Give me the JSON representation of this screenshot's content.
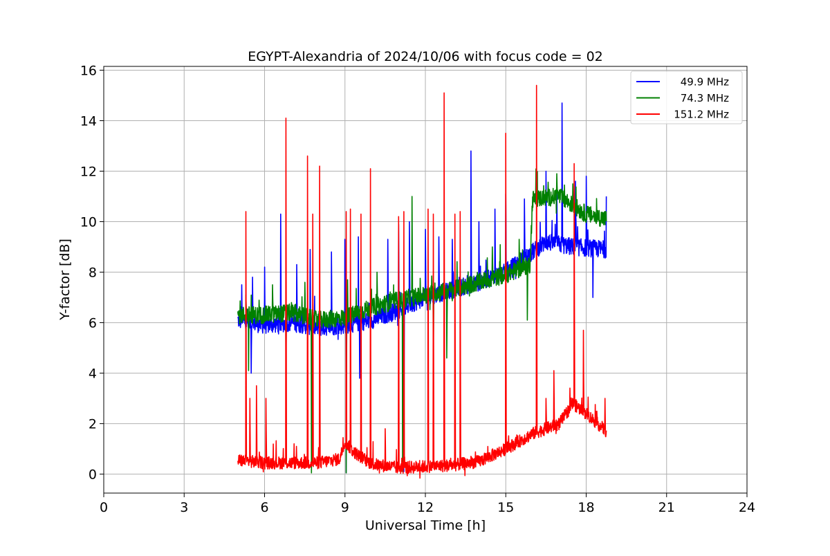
{
  "chart_data": {
    "type": "line",
    "title": "EGYPT-Alexandria of 2024/10/06 with focus code = 02",
    "xlabel": "Universal Time [h]",
    "ylabel": "Y-factor [dB]",
    "xlim": [
      0,
      24
    ],
    "ylim": [
      -0.75,
      16.15
    ],
    "xticks": [
      0,
      3,
      6,
      9,
      12,
      15,
      18,
      21,
      24
    ],
    "yticks": [
      0,
      2,
      4,
      6,
      8,
      10,
      12,
      14,
      16
    ],
    "grid": true,
    "legend_position": "top-right",
    "x_range_data": [
      5.0,
      18.75
    ],
    "series": [
      {
        "name": "49.9 MHz",
        "color": "#0000ff",
        "baseline": [
          [
            5.0,
            6.1
          ],
          [
            6.0,
            5.9
          ],
          [
            7.0,
            6.0
          ],
          [
            8.0,
            5.8
          ],
          [
            9.0,
            5.9
          ],
          [
            10.0,
            6.1
          ],
          [
            11.0,
            6.5
          ],
          [
            12.0,
            7.0
          ],
          [
            13.0,
            7.3
          ],
          [
            14.0,
            7.6
          ],
          [
            15.0,
            8.0
          ],
          [
            16.0,
            8.8
          ],
          [
            16.5,
            9.2
          ],
          [
            17.5,
            9.0
          ],
          [
            18.75,
            8.9
          ]
        ],
        "noise": 0.35,
        "spikes": [
          [
            5.15,
            7.5
          ],
          [
            5.55,
            7.8
          ],
          [
            6.0,
            8.2
          ],
          [
            6.6,
            10.3
          ],
          [
            7.2,
            8.3
          ],
          [
            7.7,
            8.9
          ],
          [
            8.5,
            8.8
          ],
          [
            9.0,
            9.3
          ],
          [
            9.5,
            9.4
          ],
          [
            10.6,
            9.3
          ],
          [
            11.0,
            9.9
          ],
          [
            11.4,
            10.0
          ],
          [
            12.0,
            9.7
          ],
          [
            12.5,
            9.4
          ],
          [
            13.0,
            9.3
          ],
          [
            13.7,
            12.8
          ],
          [
            14.0,
            10.0
          ],
          [
            14.6,
            10.5
          ],
          [
            15.0,
            11.1
          ],
          [
            15.7,
            10.9
          ],
          [
            16.5,
            12.0
          ],
          [
            16.9,
            11.3
          ],
          [
            17.1,
            14.7
          ],
          [
            17.6,
            11.6
          ],
          [
            18.0,
            11.8
          ],
          [
            18.75,
            11.0
          ],
          [
            18.25,
            7.0
          ]
        ],
        "dips": [
          [
            5.5,
            4.0
          ],
          [
            9.05,
            0.05
          ],
          [
            9.55,
            3.8
          ],
          [
            11.2,
            0.1
          ]
        ]
      },
      {
        "name": "74.3 MHz",
        "color": "#008000",
        "baseline": [
          [
            5.0,
            6.3
          ],
          [
            6.0,
            6.3
          ],
          [
            7.0,
            6.4
          ],
          [
            8.0,
            6.1
          ],
          [
            9.0,
            6.2
          ],
          [
            10.0,
            6.6
          ],
          [
            11.0,
            6.9
          ],
          [
            12.0,
            7.1
          ],
          [
            13.0,
            7.3
          ],
          [
            14.0,
            7.6
          ],
          [
            15.0,
            7.9
          ],
          [
            15.9,
            8.3
          ],
          [
            16.0,
            10.9
          ],
          [
            17.0,
            11.0
          ],
          [
            18.0,
            10.3
          ],
          [
            18.75,
            10.1
          ]
        ],
        "noise": 0.35,
        "spikes": [
          [
            5.3,
            7.1
          ],
          [
            6.3,
            7.5
          ],
          [
            7.5,
            7.6
          ],
          [
            9.1,
            7.7
          ],
          [
            10.2,
            8.0
          ],
          [
            11.5,
            11.0
          ],
          [
            12.8,
            8.8
          ],
          [
            14.5,
            9.0
          ],
          [
            15.5,
            9.3
          ],
          [
            16.9,
            11.9
          ],
          [
            17.5,
            11.5
          ]
        ],
        "dips": [
          [
            5.4,
            4.1
          ],
          [
            6.8,
            4.4
          ],
          [
            9.05,
            0.05
          ],
          [
            12.3,
            4.8
          ],
          [
            12.8,
            4.6
          ],
          [
            15.8,
            6.1
          ],
          [
            11.15,
            0.1
          ],
          [
            7.75,
            0.05
          ]
        ]
      },
      {
        "name": "151.2 MHz",
        "color": "#ff0000",
        "baseline": [
          [
            5.0,
            0.55
          ],
          [
            6.0,
            0.45
          ],
          [
            7.0,
            0.45
          ],
          [
            8.0,
            0.45
          ],
          [
            8.8,
            0.6
          ],
          [
            9.0,
            1.3
          ],
          [
            9.3,
            0.9
          ],
          [
            10.0,
            0.4
          ],
          [
            11.0,
            0.25
          ],
          [
            12.0,
            0.3
          ],
          [
            13.0,
            0.35
          ],
          [
            14.0,
            0.5
          ],
          [
            15.0,
            1.0
          ],
          [
            16.0,
            1.6
          ],
          [
            17.0,
            2.0
          ],
          [
            17.5,
            2.8
          ],
          [
            18.0,
            2.4
          ],
          [
            18.75,
            1.7
          ]
        ],
        "noise": 0.25,
        "spikes": [
          [
            5.3,
            10.4
          ],
          [
            5.45,
            3.0
          ],
          [
            5.7,
            3.5
          ],
          [
            6.05,
            3.0
          ],
          [
            6.8,
            14.1
          ],
          [
            7.6,
            12.6
          ],
          [
            7.8,
            10.3
          ],
          [
            8.05,
            12.2
          ],
          [
            9.05,
            10.4
          ],
          [
            9.2,
            10.5
          ],
          [
            9.6,
            10.3
          ],
          [
            9.95,
            12.1
          ],
          [
            10.5,
            1.8
          ],
          [
            11.0,
            10.2
          ],
          [
            11.2,
            10.4
          ],
          [
            12.1,
            10.5
          ],
          [
            12.3,
            10.3
          ],
          [
            12.7,
            15.1
          ],
          [
            13.1,
            10.3
          ],
          [
            13.3,
            10.4
          ],
          [
            15.0,
            13.5
          ],
          [
            16.15,
            15.4
          ],
          [
            16.5,
            3.0
          ],
          [
            16.8,
            4.1
          ],
          [
            17.55,
            12.3
          ],
          [
            17.9,
            5.7
          ],
          [
            18.7,
            3.0
          ]
        ],
        "dips": []
      }
    ]
  }
}
